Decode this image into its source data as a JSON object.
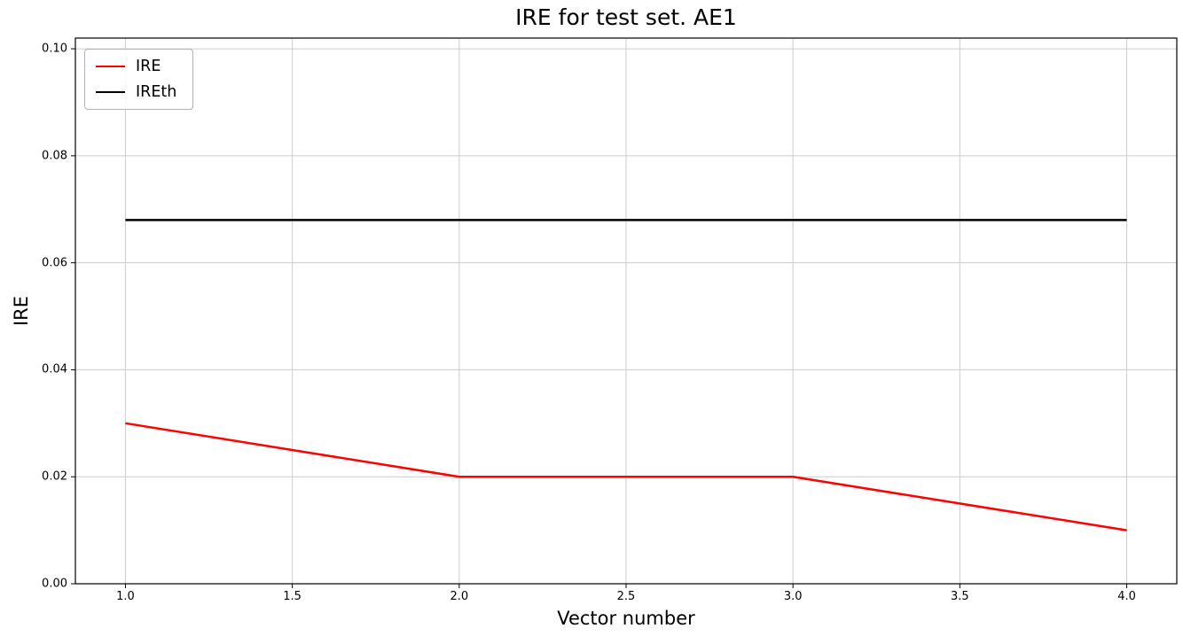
{
  "chart_data": {
    "type": "line",
    "title": "IRE for test set. AE1",
    "xlabel": "Vector number",
    "ylabel": "IRE",
    "x": [
      1,
      2,
      3,
      4
    ],
    "series": [
      {
        "name": "IRE",
        "color": "#ff0000",
        "values": [
          0.03,
          0.02,
          0.02,
          0.01
        ]
      },
      {
        "name": "IREth",
        "color": "#000000",
        "values": [
          0.068,
          0.068,
          0.068,
          0.068
        ]
      }
    ],
    "xlim": [
      0.85,
      4.15
    ],
    "ylim": [
      0.0,
      0.102
    ],
    "xtick_values": [
      1.0,
      1.5,
      2.0,
      2.5,
      3.0,
      3.5,
      4.0
    ],
    "xtick_labels": [
      "1.0",
      "1.5",
      "2.0",
      "2.5",
      "3.0",
      "3.5",
      "4.0"
    ],
    "ytick_values": [
      0.0,
      0.02,
      0.04,
      0.06,
      0.08,
      0.1
    ],
    "ytick_labels": [
      "0.00",
      "0.02",
      "0.04",
      "0.06",
      "0.08",
      "0.10"
    ],
    "grid": true,
    "grid_color": "#cccccc",
    "spine_color": "#000000",
    "legend": {
      "position": "upper-left",
      "entries": [
        "IRE",
        "IREth"
      ]
    }
  }
}
